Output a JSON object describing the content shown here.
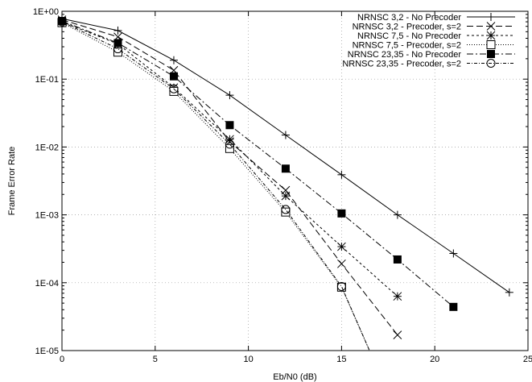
{
  "chart_data": {
    "type": "line",
    "title": "",
    "xlabel": "Eb/N0 (dB)",
    "ylabel": "Frame Error Rate",
    "xlim": [
      0,
      25
    ],
    "ylim": [
      1e-05,
      1
    ],
    "yscale": "log",
    "grid": true,
    "legend_position": "top-right",
    "x_ticks": [
      0,
      5,
      10,
      15,
      20,
      25
    ],
    "x_tick_labels": [
      "0",
      "5",
      "10",
      "15",
      "20",
      "25"
    ],
    "y_ticks": [
      1,
      0.1,
      0.01,
      0.001,
      0.0001,
      1e-05
    ],
    "y_tick_labels": [
      "1E+00",
      "1E-01",
      "1E-02",
      "1E-03",
      "1E-04",
      "1E-05"
    ],
    "series": [
      {
        "name": "NRNSC 3,2 - No Precoder",
        "marker": "plus",
        "dash": "",
        "x": [
          0,
          3,
          6,
          9,
          12,
          15,
          18,
          21,
          24
        ],
        "y": [
          0.78,
          0.52,
          0.19,
          0.058,
          0.015,
          0.0039,
          0.001,
          0.00027,
          7.2e-05
        ]
      },
      {
        "name": "NRNSC 3,2 - Precoder, s=2",
        "marker": "cross",
        "dash": "8 4",
        "x": [
          0,
          3,
          6,
          9,
          12,
          15,
          18
        ],
        "y": [
          0.75,
          0.42,
          0.135,
          0.012,
          0.0023,
          0.00019,
          1.7e-05
        ]
      },
      {
        "name": "NRNSC 7,5 - No Precoder",
        "marker": "star",
        "dash": "3 3",
        "x": [
          0,
          3,
          6,
          9,
          12,
          15,
          18
        ],
        "y": [
          0.7,
          0.33,
          0.075,
          0.013,
          0.0019,
          0.00034,
          6.3e-05
        ]
      },
      {
        "name": "NRNSC 7,5 - Precoder, s=2",
        "marker": "square-open",
        "dash": "1 2",
        "x": [
          0,
          3,
          6,
          9,
          12,
          15,
          16.5
        ],
        "y": [
          0.68,
          0.25,
          0.066,
          0.0095,
          0.0011,
          8.6e-05,
          1e-05
        ]
      },
      {
        "name": "NRNSC 23,35 - No Precoder",
        "marker": "square-filled",
        "dash": "8 3 2 3",
        "x": [
          0,
          3,
          6,
          9,
          12,
          15,
          18,
          21
        ],
        "y": [
          0.72,
          0.34,
          0.11,
          0.021,
          0.0048,
          0.00105,
          0.00022,
          4.4e-05
        ]
      },
      {
        "name": "NRNSC 23,35 - Precoder, s=2",
        "marker": "circle-open",
        "dash": "4 2 1 2",
        "x": [
          0,
          3,
          6,
          9,
          12,
          15,
          16.5
        ],
        "y": [
          0.7,
          0.28,
          0.072,
          0.011,
          0.0012,
          8.8e-05,
          1e-05
        ]
      }
    ]
  }
}
